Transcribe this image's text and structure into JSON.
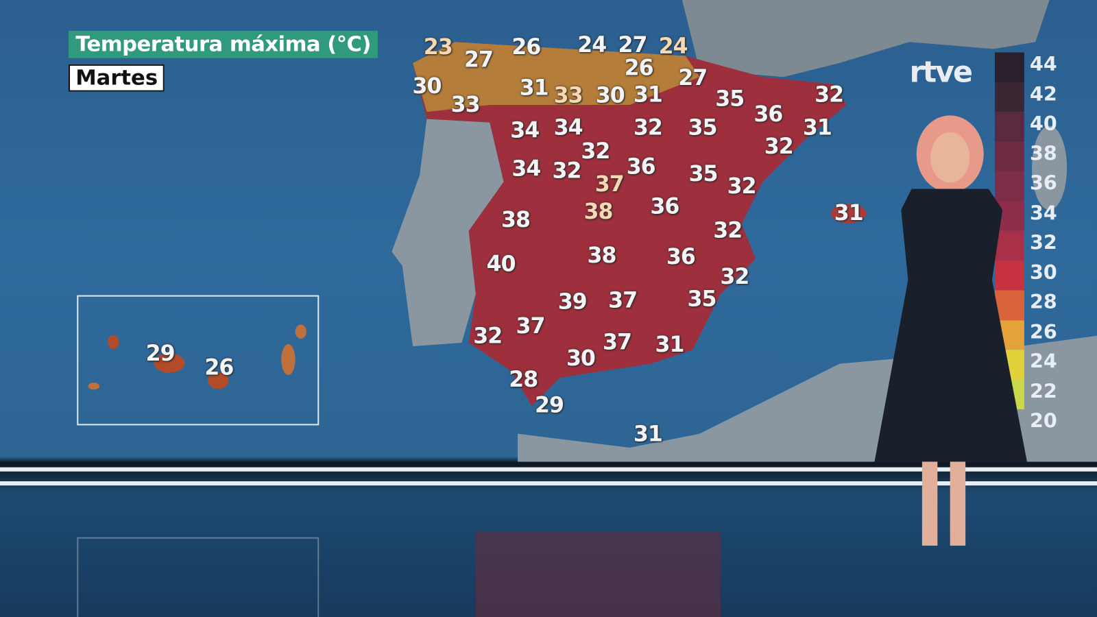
{
  "header": {
    "title": "Temperatura máxima (°C)",
    "day": "Martes"
  },
  "logo": "rtve",
  "legend": {
    "ticks": [
      44,
      42,
      40,
      38,
      36,
      34,
      32,
      30,
      28,
      26,
      24,
      22,
      20
    ],
    "colors": [
      "#2a1f2a",
      "#3b2634",
      "#5a2a40",
      "#6e2c44",
      "#7d2d48",
      "#8f2e4a",
      "#a83048",
      "#c8323e",
      "#d9643a",
      "#e3a23a",
      "#e2d23a",
      "#c9d94a"
    ]
  },
  "peninsula_temps": [
    23,
    27,
    26,
    24,
    27,
    24,
    30,
    33,
    31,
    26,
    27,
    33,
    30,
    31,
    35,
    36,
    32,
    31,
    32,
    34,
    34,
    32,
    35,
    32,
    36,
    35,
    32,
    34,
    32,
    37,
    38,
    36,
    31,
    38,
    32,
    40,
    38,
    36,
    32,
    39,
    37,
    35,
    37,
    32,
    37,
    31,
    30,
    28,
    29,
    31
  ],
  "canarias_temps": [
    29,
    26
  ],
  "colors": {
    "sea": "#2f6a9c",
    "land_hot": "#a8303f",
    "title_bg": "#2f9a7e"
  }
}
